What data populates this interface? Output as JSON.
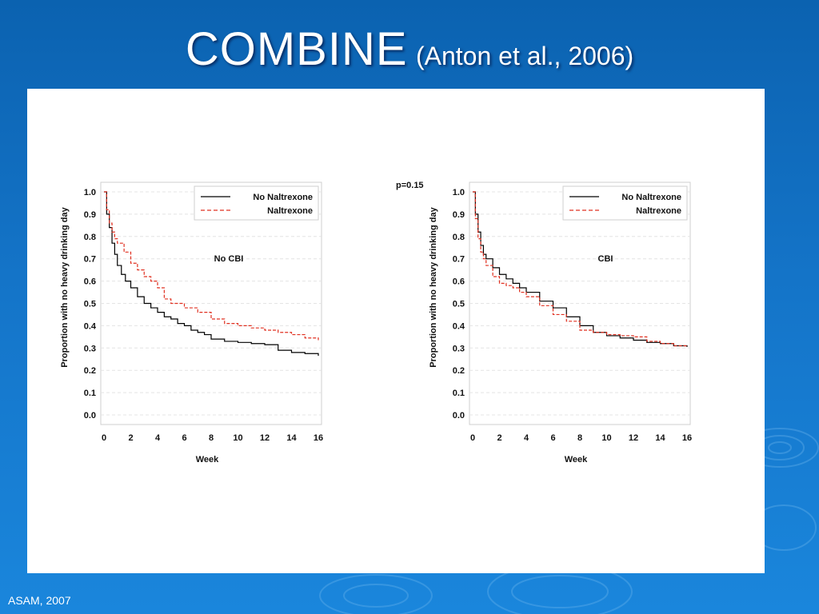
{
  "slide": {
    "title": "COMBINE",
    "subtitle": "(Anton et al., 2006)",
    "footer": "ASAM, 2007",
    "background_color": "#1474c8"
  },
  "chart_data": [
    {
      "type": "line",
      "step": true,
      "panel_label": "No CBI",
      "xlabel": "Week",
      "ylabel": "Proportion with no heavy drinking day",
      "xlim": [
        0,
        16
      ],
      "ylim": [
        0.0,
        1.0
      ],
      "xticks": [
        "0",
        "2",
        "4",
        "6",
        "8",
        "10",
        "12",
        "14",
        "16"
      ],
      "yticks": [
        "0.0",
        "0.1",
        "0.2",
        "0.3",
        "0.4",
        "0.5",
        "0.6",
        "0.7",
        "0.8",
        "0.9",
        "1.0"
      ],
      "grid": "horizontal-dashed",
      "legend": "top-right",
      "series": [
        {
          "name": "No Naltrexone",
          "color": "#000000",
          "style": "solid",
          "x": [
            0,
            0.2,
            0.4,
            0.6,
            0.8,
            1,
            1.3,
            1.6,
            2,
            2.5,
            3,
            3.5,
            4,
            4.5,
            5,
            5.5,
            6,
            6.5,
            7,
            7.5,
            8,
            9,
            10,
            11,
            12,
            13,
            14,
            15,
            16
          ],
          "y": [
            1.0,
            0.9,
            0.84,
            0.77,
            0.72,
            0.67,
            0.63,
            0.6,
            0.57,
            0.53,
            0.5,
            0.48,
            0.46,
            0.44,
            0.43,
            0.41,
            0.4,
            0.38,
            0.37,
            0.36,
            0.34,
            0.33,
            0.325,
            0.32,
            0.315,
            0.29,
            0.28,
            0.275,
            0.265
          ]
        },
        {
          "name": "Naltrexone",
          "color": "#e03020",
          "style": "dashed",
          "x": [
            0,
            0.2,
            0.4,
            0.6,
            0.8,
            1,
            1.5,
            2,
            2.5,
            3,
            3.5,
            4,
            4.5,
            5,
            6,
            7,
            8,
            9,
            10,
            11,
            12,
            13,
            14,
            15,
            16
          ],
          "y": [
            1.0,
            0.92,
            0.86,
            0.82,
            0.79,
            0.77,
            0.73,
            0.68,
            0.65,
            0.62,
            0.6,
            0.57,
            0.52,
            0.5,
            0.48,
            0.46,
            0.43,
            0.41,
            0.4,
            0.39,
            0.38,
            0.37,
            0.36,
            0.345,
            0.335
          ]
        }
      ]
    },
    {
      "type": "line",
      "step": true,
      "panel_label": "CBI",
      "annotation": "p=0.15",
      "xlabel": "Week",
      "ylabel": "Proportion with no heavy drinking day",
      "xlim": [
        0,
        16
      ],
      "ylim": [
        0.0,
        1.0
      ],
      "xticks": [
        "0",
        "2",
        "4",
        "6",
        "8",
        "10",
        "12",
        "14",
        "16"
      ],
      "yticks": [
        "0.0",
        "0.1",
        "0.2",
        "0.3",
        "0.4",
        "0.5",
        "0.6",
        "0.7",
        "0.8",
        "0.9",
        "1.0"
      ],
      "grid": "horizontal-dashed",
      "legend": "top-right",
      "series": [
        {
          "name": "No Naltrexone",
          "color": "#000000",
          "style": "solid",
          "x": [
            0,
            0.2,
            0.4,
            0.6,
            0.8,
            1,
            1.5,
            2,
            2.5,
            3,
            3.5,
            4,
            5,
            6,
            7,
            8,
            9,
            10,
            11,
            12,
            13,
            14,
            15,
            16
          ],
          "y": [
            1.0,
            0.9,
            0.82,
            0.76,
            0.72,
            0.7,
            0.66,
            0.63,
            0.61,
            0.59,
            0.57,
            0.55,
            0.51,
            0.48,
            0.44,
            0.4,
            0.37,
            0.355,
            0.345,
            0.335,
            0.325,
            0.32,
            0.31,
            0.305
          ]
        },
        {
          "name": "Naltrexone",
          "color": "#e03020",
          "style": "dashed",
          "x": [
            0,
            0.2,
            0.4,
            0.6,
            0.8,
            1,
            1.5,
            2,
            2.5,
            3,
            3.5,
            4,
            5,
            6,
            7,
            8,
            9,
            10,
            11,
            12,
            13,
            14,
            15,
            16
          ],
          "y": [
            1.0,
            0.88,
            0.79,
            0.73,
            0.7,
            0.67,
            0.62,
            0.59,
            0.58,
            0.57,
            0.55,
            0.53,
            0.49,
            0.45,
            0.42,
            0.38,
            0.37,
            0.36,
            0.355,
            0.35,
            0.33,
            0.32,
            0.31,
            0.305
          ]
        }
      ]
    }
  ]
}
